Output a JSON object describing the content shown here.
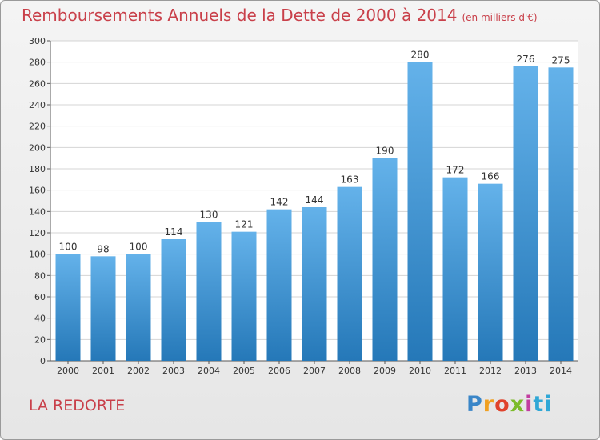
{
  "header": {
    "title": "Remboursements Annuels de la Dette de 2000 à 2014",
    "unit": "(en milliers d'€)"
  },
  "commune": "LA REDORTE",
  "logo": {
    "letters": [
      "P",
      "r",
      "o",
      "x",
      "i",
      "ti"
    ]
  },
  "colors": {
    "bar_light": "#64b2ea",
    "bar_dark": "#2578b8",
    "title": "#c9404a"
  },
  "chart_data": {
    "type": "bar",
    "title": "Remboursements Annuels de la Dette de 2000 à 2014",
    "xlabel": "",
    "ylabel": "",
    "categories": [
      "2000",
      "2001",
      "2002",
      "2003",
      "2004",
      "2005",
      "2006",
      "2007",
      "2008",
      "2009",
      "2010",
      "2011",
      "2012",
      "2013",
      "2014"
    ],
    "values": [
      100,
      98,
      100,
      114,
      130,
      121,
      142,
      144,
      163,
      190,
      280,
      172,
      166,
      276,
      275
    ],
    "ylim": [
      0,
      300
    ],
    "yticks": [
      0,
      20,
      40,
      60,
      80,
      100,
      120,
      140,
      160,
      180,
      200,
      220,
      240,
      260,
      280,
      300
    ],
    "grid": true
  }
}
